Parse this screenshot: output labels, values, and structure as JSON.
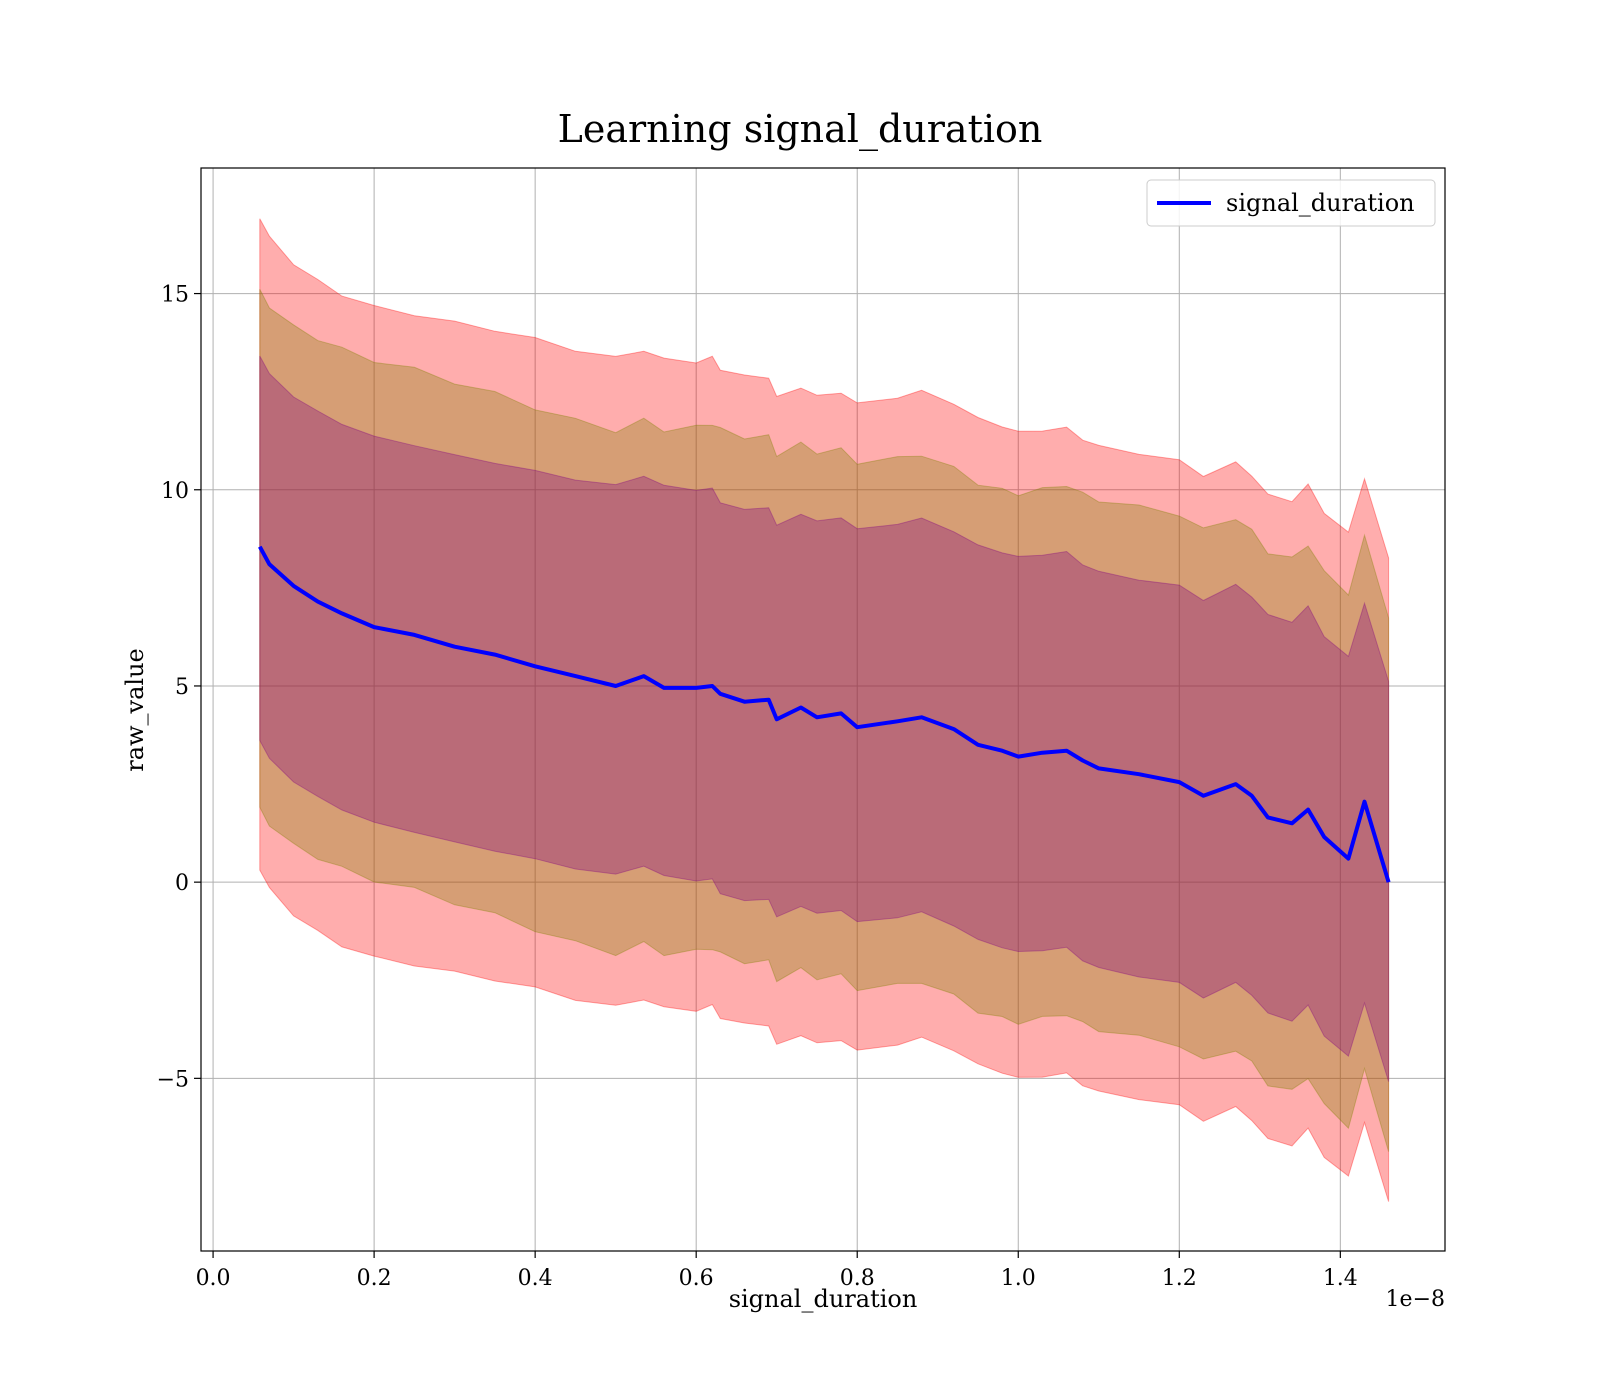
{
  "chart_data": {
    "type": "line",
    "title": "Learning signal_duration",
    "xlabel": "signal_duration",
    "ylabel": "raw_value",
    "x_offset_label": "1e−8",
    "x_scale_factor": 1e-08,
    "xlim": [
      -0.015,
      1.53
    ],
    "ylim": [
      -9.4,
      18.2
    ],
    "x_ticks": [
      0.0,
      0.2,
      0.4,
      0.6,
      0.8,
      1.0,
      1.2,
      1.4
    ],
    "x_tick_labels": [
      "0.0",
      "0.2",
      "0.4",
      "0.6",
      "0.8",
      "1.0",
      "1.2",
      "1.4"
    ],
    "y_ticks": [
      -5,
      0,
      5,
      10,
      15
    ],
    "y_tick_labels": [
      "−5",
      "0",
      "5",
      "10",
      "15"
    ],
    "grid": true,
    "legend": {
      "position": "top-right",
      "entries": [
        "signal_duration"
      ]
    },
    "colors": {
      "line": "#0000ff",
      "band_outer": "#ff0000",
      "band_middle": "#808000",
      "band_inner": "#800080"
    },
    "series": [
      {
        "name": "signal_duration",
        "x": [
          0.058,
          0.07,
          0.1,
          0.13,
          0.16,
          0.2,
          0.25,
          0.3,
          0.35,
          0.4,
          0.45,
          0.5,
          0.535,
          0.56,
          0.6,
          0.62,
          0.63,
          0.66,
          0.69,
          0.7,
          0.73,
          0.75,
          0.78,
          0.8,
          0.85,
          0.88,
          0.92,
          0.95,
          0.98,
          1.0,
          1.03,
          1.06,
          1.08,
          1.1,
          1.15,
          1.2,
          1.23,
          1.27,
          1.29,
          1.31,
          1.34,
          1.36,
          1.38,
          1.41,
          1.43,
          1.46
        ],
        "y": [
          8.55,
          8.1,
          7.55,
          7.15,
          6.85,
          6.5,
          6.3,
          6.0,
          5.8,
          5.5,
          5.25,
          5.0,
          5.25,
          4.95,
          4.95,
          5.0,
          4.8,
          4.6,
          4.65,
          4.15,
          4.45,
          4.2,
          4.3,
          3.95,
          4.1,
          4.2,
          3.9,
          3.5,
          3.35,
          3.2,
          3.3,
          3.35,
          3.1,
          2.9,
          2.75,
          2.55,
          2.2,
          2.5,
          2.2,
          1.65,
          1.5,
          1.85,
          1.15,
          0.6,
          2.05,
          0.0
        ]
      }
    ],
    "bands": [
      {
        "label": "outer",
        "sigma": 3,
        "spread_start": 8.3,
        "spread_end": 8.2
      },
      {
        "label": "middle",
        "sigma": 2,
        "spread_start": 6.6,
        "spread_end": 6.8
      },
      {
        "label": "inner",
        "sigma": 1,
        "spread_start": 4.9,
        "spread_end": 5.1
      }
    ]
  }
}
